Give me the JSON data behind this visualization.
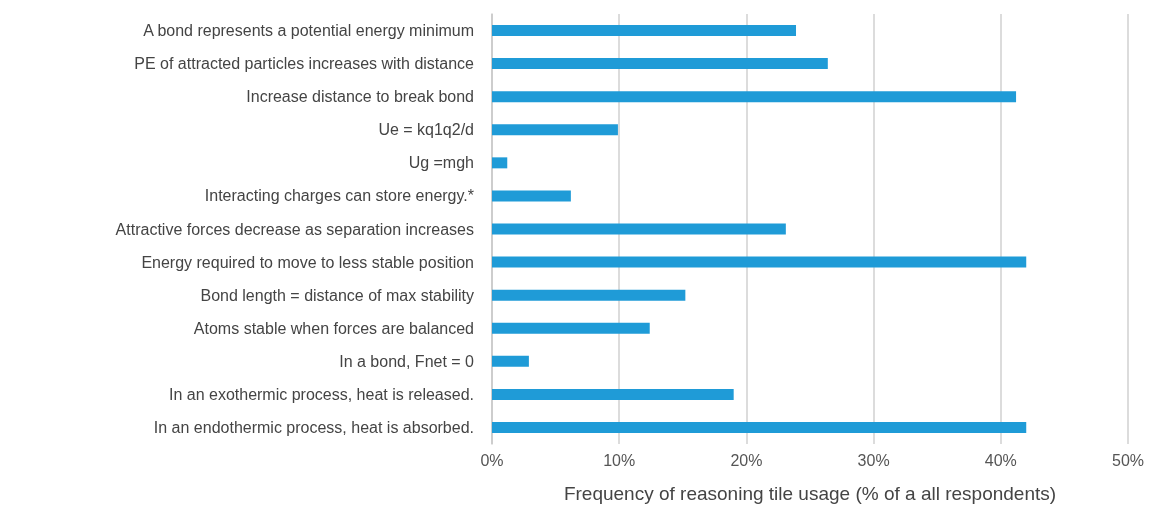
{
  "chart_data": {
    "type": "bar",
    "orientation": "horizontal",
    "categories": [
      "A bond represents a potential energy minimum",
      "PE of attracted particles increases with distance",
      "Increase distance to break bond",
      "Ue = kq1q2/d",
      "Ug =mgh",
      "Interacting charges can store energy.*",
      "Attractive forces decrease as separation increases",
      "Energy required to move to less stable position",
      "Bond length = distance of max stability",
      "Atoms stable when forces are balanced",
      "In a bond, Fnet = 0",
      "In an exothermic process, heat is released.",
      "In an endothermic process, heat is absorbed."
    ],
    "values": [
      23.9,
      26.4,
      41.2,
      9.9,
      1.2,
      6.2,
      23.1,
      42.0,
      15.2,
      12.4,
      2.9,
      19.0,
      42.0
    ],
    "color": "#1f9bd7",
    "xlabel": "Frequency of reasoning tile usage (% of a all respondents)",
    "xlim": [
      0,
      50
    ],
    "xticks": [
      {
        "value": 0,
        "label": "0%"
      },
      {
        "value": 10,
        "label": "10%"
      },
      {
        "value": 20,
        "label": "20%"
      },
      {
        "value": 30,
        "label": "30%"
      },
      {
        "value": 40,
        "label": "40%"
      },
      {
        "value": 50,
        "label": "50%"
      }
    ],
    "grid": "x"
  }
}
